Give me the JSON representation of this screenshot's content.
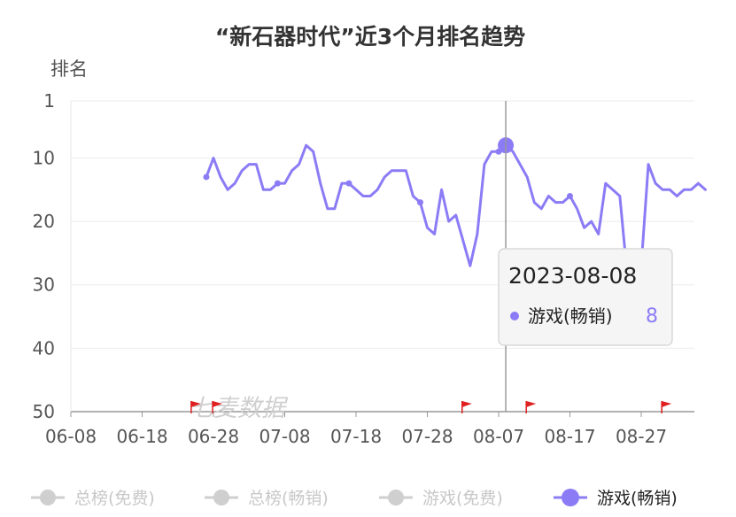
{
  "chart_data": {
    "type": "line",
    "title": "“新石器时代”近3个月排名趋势",
    "ylabel": "排名",
    "y_inverted": true,
    "ylim": [
      1,
      50
    ],
    "yticks": [
      1,
      10,
      20,
      30,
      40,
      50
    ],
    "xticks": [
      "06-08",
      "06-18",
      "06-28",
      "07-08",
      "07-18",
      "07-28",
      "08-07",
      "08-17",
      "08-27"
    ],
    "grid": true,
    "legend_position": "bottom",
    "watermark": "七麦数据",
    "series": [
      {
        "name": "总榜(免费)",
        "active": false,
        "color": "#cfcfcf",
        "values": []
      },
      {
        "name": "总榜(畅销)",
        "active": false,
        "color": "#cfcfcf",
        "values": []
      },
      {
        "name": "游戏(免费)",
        "active": false,
        "color": "#cfcfcf",
        "values": []
      },
      {
        "name": "游戏(畅销)",
        "active": true,
        "color": "#8b7cf6",
        "points": [
          [
            "06-27",
            13
          ],
          [
            "06-28",
            10
          ],
          [
            "06-29",
            13
          ],
          [
            "06-30",
            15
          ],
          [
            "07-01",
            14
          ],
          [
            "07-02",
            12
          ],
          [
            "07-03",
            11
          ],
          [
            "07-04",
            11
          ],
          [
            "07-05",
            15
          ],
          [
            "07-06",
            15
          ],
          [
            "07-07",
            14
          ],
          [
            "07-08",
            14
          ],
          [
            "07-09",
            12
          ],
          [
            "07-10",
            11
          ],
          [
            "07-11",
            8
          ],
          [
            "07-12",
            9
          ],
          [
            "07-13",
            14
          ],
          [
            "07-14",
            18
          ],
          [
            "07-15",
            18
          ],
          [
            "07-16",
            14
          ],
          [
            "07-17",
            14
          ],
          [
            "07-18",
            15
          ],
          [
            "07-19",
            16
          ],
          [
            "07-20",
            16
          ],
          [
            "07-21",
            15
          ],
          [
            "07-22",
            13
          ],
          [
            "07-23",
            12
          ],
          [
            "07-24",
            12
          ],
          [
            "07-25",
            12
          ],
          [
            "07-26",
            16
          ],
          [
            "07-27",
            17
          ],
          [
            "07-28",
            21
          ],
          [
            "07-29",
            22
          ],
          [
            "07-30",
            15
          ],
          [
            "07-31",
            20
          ],
          [
            "08-01",
            19
          ],
          [
            "08-02",
            23
          ],
          [
            "08-03",
            27
          ],
          [
            "08-04",
            22
          ],
          [
            "08-05",
            11
          ],
          [
            "08-06",
            9
          ],
          [
            "08-07",
            9
          ],
          [
            "08-08",
            8
          ],
          [
            "08-09",
            9
          ],
          [
            "08-10",
            11
          ],
          [
            "08-11",
            13
          ],
          [
            "08-12",
            17
          ],
          [
            "08-13",
            18
          ],
          [
            "08-14",
            16
          ],
          [
            "08-15",
            17
          ],
          [
            "08-16",
            17
          ],
          [
            "08-17",
            16
          ],
          [
            "08-18",
            18
          ],
          [
            "08-19",
            21
          ],
          [
            "08-20",
            20
          ],
          [
            "08-21",
            22
          ],
          [
            "08-22",
            14
          ],
          [
            "08-23",
            15
          ],
          [
            "08-24",
            16
          ],
          [
            "08-25",
            28
          ],
          [
            "08-26",
            28
          ],
          [
            "08-27",
            27
          ],
          [
            "08-28",
            11
          ],
          [
            "08-29",
            14
          ],
          [
            "08-30",
            15
          ],
          [
            "08-31",
            15
          ],
          [
            "09-01",
            16
          ],
          [
            "09-02",
            15
          ],
          [
            "09-03",
            15
          ],
          [
            "09-04",
            14
          ],
          [
            "09-05",
            15
          ]
        ]
      }
    ],
    "markers": [
      "06-25",
      "06-28",
      "08-02",
      "08-11",
      "08-30"
    ],
    "tooltip": {
      "date": "2023-08-08",
      "series_name": "游戏(畅销)",
      "value": "8"
    }
  }
}
